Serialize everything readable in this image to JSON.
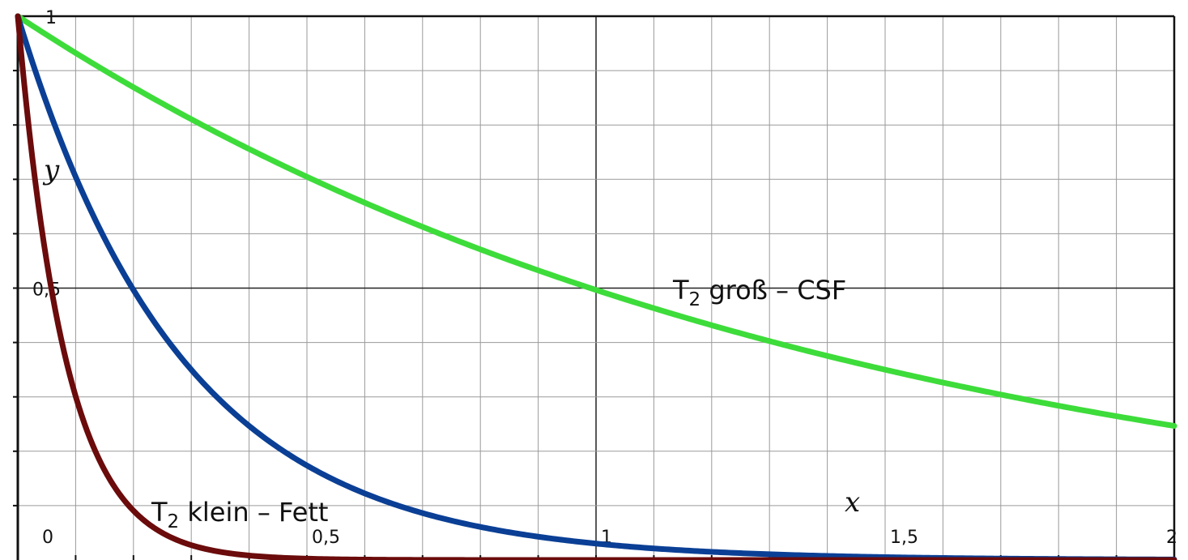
{
  "chart_data": {
    "type": "line",
    "xlabel": "x",
    "ylabel": "y",
    "xlim": [
      0,
      2
    ],
    "ylim": [
      0,
      1
    ],
    "grid": true,
    "x_tick_labels": [
      "0",
      "0,5",
      "1",
      "1,5",
      "2"
    ],
    "y_tick_labels": [
      "0,5",
      "1"
    ],
    "series": [
      {
        "color": "#3ddc3a",
        "decay_rate": 0.7,
        "x": [
          0,
          0.25,
          0.5,
          0.75,
          1.0,
          1.25,
          1.5,
          1.75,
          2.0
        ],
        "y": [
          1.0,
          0.84,
          0.7,
          0.59,
          0.49,
          0.42,
          0.35,
          0.29,
          0.25
        ]
      },
      {
        "color": "#0a3f95",
        "decay_rate": 3.5,
        "x": [
          0,
          0.1,
          0.2,
          0.3,
          0.5,
          0.75,
          1.0,
          1.5,
          2.0
        ],
        "y": [
          1.0,
          0.7,
          0.5,
          0.35,
          0.17,
          0.07,
          0.03,
          0.01,
          0.0
        ]
      },
      {
        "color": "#6b0b0b",
        "decay_rate": 12,
        "x": [
          0,
          0.05,
          0.1,
          0.15,
          0.2,
          0.3,
          0.5
        ],
        "y": [
          1.0,
          0.55,
          0.3,
          0.16,
          0.09,
          0.03,
          0.0
        ]
      }
    ],
    "annotations": [
      {
        "base": "T",
        "sub": "2",
        "text": " groß – CSF",
        "x": 1.14,
        "y": 0.49
      },
      {
        "base": "T",
        "sub": "2",
        "text": " klein – Fett",
        "x": 0.23,
        "y": 0.04
      }
    ]
  }
}
